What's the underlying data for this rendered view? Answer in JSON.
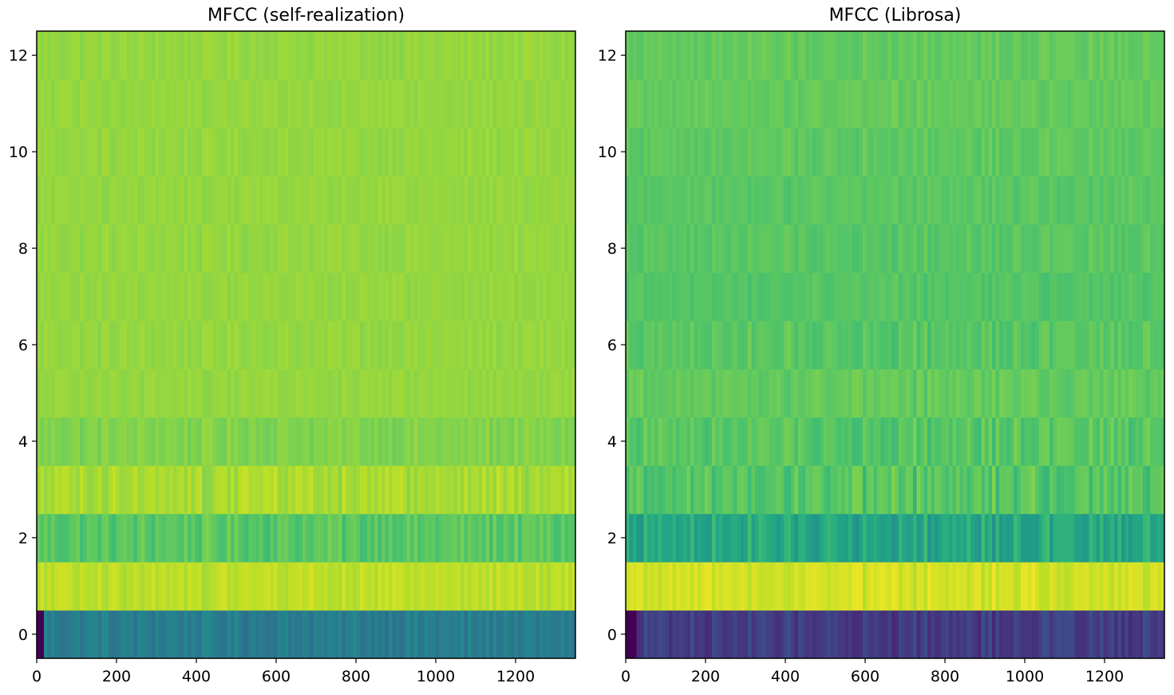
{
  "chart_data": [
    {
      "type": "heatmap",
      "title": "MFCC (self-realization)",
      "xlabel": "",
      "ylabel": "",
      "colormap": "viridis",
      "xlim": [
        0,
        1350
      ],
      "ylim": [
        -0.5,
        12.5
      ],
      "xticks": [
        0,
        200,
        400,
        600,
        800,
        1000,
        1200
      ],
      "yticks": [
        0,
        2,
        4,
        6,
        8,
        10,
        12
      ],
      "n_coefficients": 13,
      "row_mean_values": [
        0.42,
        0.9,
        0.74,
        0.87,
        0.81,
        0.84,
        0.84,
        0.84,
        0.84,
        0.84,
        0.84,
        0.84,
        0.84
      ],
      "row_variation": [
        0.05,
        0.04,
        0.05,
        0.05,
        0.03,
        0.02,
        0.02,
        0.02,
        0.02,
        0.02,
        0.02,
        0.02,
        0.02
      ],
      "leading_dark_frames": 12
    },
    {
      "type": "heatmap",
      "title": "MFCC (Librosa)",
      "xlabel": "",
      "ylabel": "",
      "colormap": "viridis",
      "xlim": [
        0,
        1350
      ],
      "ylim": [
        -0.5,
        12.5
      ],
      "xticks": [
        0,
        200,
        400,
        600,
        800,
        1000,
        1200
      ],
      "yticks": [
        0,
        2,
        4,
        6,
        8,
        10,
        12
      ],
      "n_coefficients": 13,
      "row_mean_values": [
        0.18,
        0.93,
        0.6,
        0.73,
        0.74,
        0.76,
        0.74,
        0.73,
        0.74,
        0.74,
        0.75,
        0.76,
        0.76
      ],
      "row_variation": [
        0.06,
        0.05,
        0.08,
        0.08,
        0.05,
        0.04,
        0.04,
        0.03,
        0.03,
        0.03,
        0.03,
        0.03,
        0.03
      ],
      "leading_dark_frames": 20
    }
  ]
}
